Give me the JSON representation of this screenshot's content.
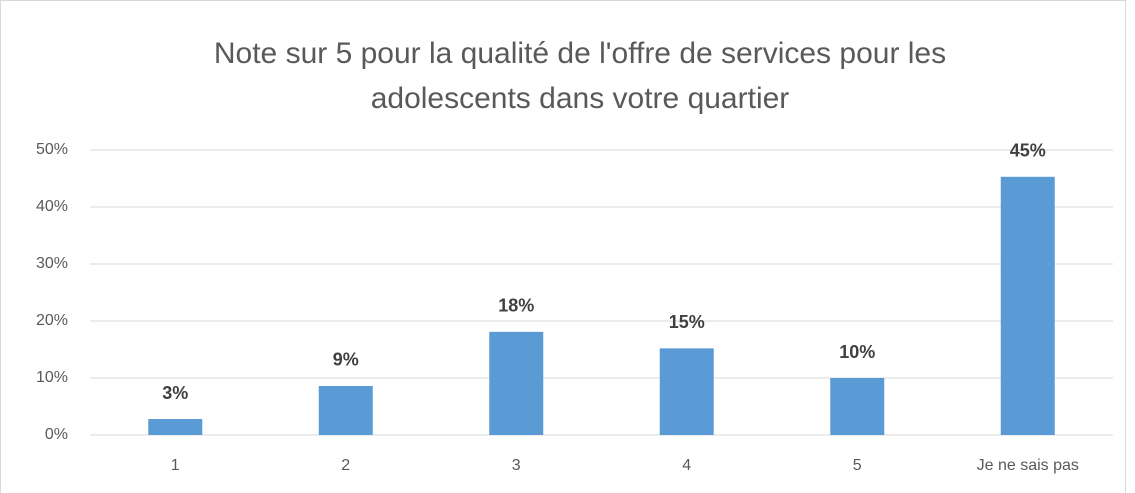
{
  "chart_data": {
    "type": "bar",
    "title": [
      "Note sur 5 pour la qualité de l'offre de services pour les",
      "adolescents dans votre quartier"
    ],
    "categories": [
      "1",
      "2",
      "3",
      "4",
      "5",
      "Je ne sais pas"
    ],
    "values": [
      2.8,
      8.6,
      18.1,
      15.2,
      10.0,
      45.3
    ],
    "value_labels": [
      "3%",
      "9%",
      "18%",
      "15%",
      "10%",
      "45%"
    ],
    "color": "#5b9bd5",
    "ylim": [
      0,
      50
    ],
    "yticks": [
      {
        "value": 0,
        "label": "0%"
      },
      {
        "value": 10,
        "label": "10%"
      },
      {
        "value": 20,
        "label": "20%"
      },
      {
        "value": 30,
        "label": "30%"
      },
      {
        "value": 40,
        "label": "40%"
      },
      {
        "value": 50,
        "label": "50%"
      }
    ],
    "grid": true
  }
}
